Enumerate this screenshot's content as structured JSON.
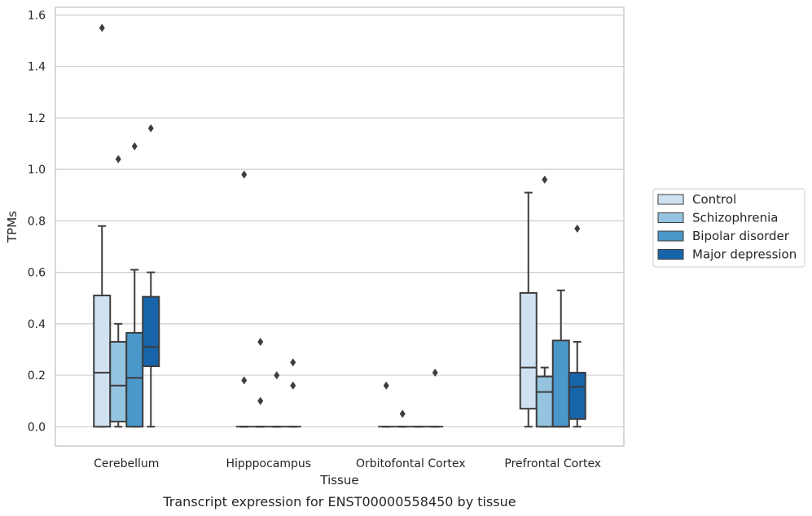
{
  "chart_data": {
    "type": "box",
    "caption": "Transcript expression for ENST00000558450 by tissue",
    "xlabel": "Tissue",
    "ylabel": "TPMs",
    "ylim": [
      -0.075,
      1.63
    ],
    "yticks": [
      0.0,
      0.2,
      0.4,
      0.6,
      0.8,
      1.0,
      1.2,
      1.4,
      1.6
    ],
    "ytick_labels": [
      "0.0",
      "0.2",
      "0.4",
      "0.6",
      "0.8",
      "1.0",
      "1.2",
      "1.4",
      "1.6"
    ],
    "grid": true,
    "legend_position": "right",
    "categories": [
      "Cerebellum",
      "Hipppocampus",
      "Orbitofontal Cortex",
      "Prefrontal Cortex"
    ],
    "series": [
      {
        "name": "Control",
        "color": "#d0e1f2",
        "boxes": [
          {
            "whislo": 0.0,
            "q1": 0.0,
            "med": 0.21,
            "q3": 0.51,
            "whishi": 0.78,
            "fliers": [
              1.55
            ]
          },
          {
            "whislo": 0.0,
            "q1": 0.0,
            "med": 0.0,
            "q3": 0.0,
            "whishi": 0.0,
            "fliers": [
              0.98,
              0.18
            ]
          },
          {
            "whislo": 0.0,
            "q1": 0.0,
            "med": 0.0,
            "q3": 0.0,
            "whishi": 0.0,
            "fliers": [
              0.16
            ]
          },
          {
            "whislo": 0.0,
            "q1": 0.07,
            "med": 0.23,
            "q3": 0.52,
            "whishi": 0.91,
            "fliers": []
          }
        ]
      },
      {
        "name": "Schizophrenia",
        "color": "#94c4df",
        "boxes": [
          {
            "whislo": 0.0,
            "q1": 0.02,
            "med": 0.16,
            "q3": 0.33,
            "whishi": 0.4,
            "fliers": [
              1.04
            ]
          },
          {
            "whislo": 0.0,
            "q1": 0.0,
            "med": 0.0,
            "q3": 0.0,
            "whishi": 0.0,
            "fliers": [
              0.33,
              0.1
            ]
          },
          {
            "whislo": 0.0,
            "q1": 0.0,
            "med": 0.0,
            "q3": 0.0,
            "whishi": 0.0,
            "fliers": [
              0.05
            ]
          },
          {
            "whislo": 0.0,
            "q1": 0.0,
            "med": 0.135,
            "q3": 0.195,
            "whishi": 0.23,
            "fliers": [
              0.96
            ]
          }
        ]
      },
      {
        "name": "Bipolar disorder",
        "color": "#4a98c9",
        "boxes": [
          {
            "whislo": 0.0,
            "q1": 0.0,
            "med": 0.19,
            "q3": 0.365,
            "whishi": 0.61,
            "fliers": [
              1.09
            ]
          },
          {
            "whislo": 0.0,
            "q1": 0.0,
            "med": 0.0,
            "q3": 0.0,
            "whishi": 0.0,
            "fliers": [
              0.2
            ]
          },
          {
            "whislo": 0.0,
            "q1": 0.0,
            "med": 0.0,
            "q3": 0.0,
            "whishi": 0.0,
            "fliers": []
          },
          {
            "whislo": 0.0,
            "q1": 0.0,
            "med": 0.0,
            "q3": 0.335,
            "whishi": 0.53,
            "fliers": []
          }
        ]
      },
      {
        "name": "Major depression",
        "color": "#1764ab",
        "boxes": [
          {
            "whislo": 0.0,
            "q1": 0.235,
            "med": 0.31,
            "q3": 0.505,
            "whishi": 0.6,
            "fliers": [
              1.16
            ]
          },
          {
            "whislo": 0.0,
            "q1": 0.0,
            "med": 0.0,
            "q3": 0.0,
            "whishi": 0.0,
            "fliers": [
              0.25,
              0.16
            ]
          },
          {
            "whislo": 0.0,
            "q1": 0.0,
            "med": 0.0,
            "q3": 0.0,
            "whishi": 0.0,
            "fliers": [
              0.21
            ]
          },
          {
            "whislo": 0.0,
            "q1": 0.03,
            "med": 0.155,
            "q3": 0.21,
            "whishi": 0.33,
            "fliers": [
              0.77
            ]
          }
        ]
      }
    ]
  }
}
